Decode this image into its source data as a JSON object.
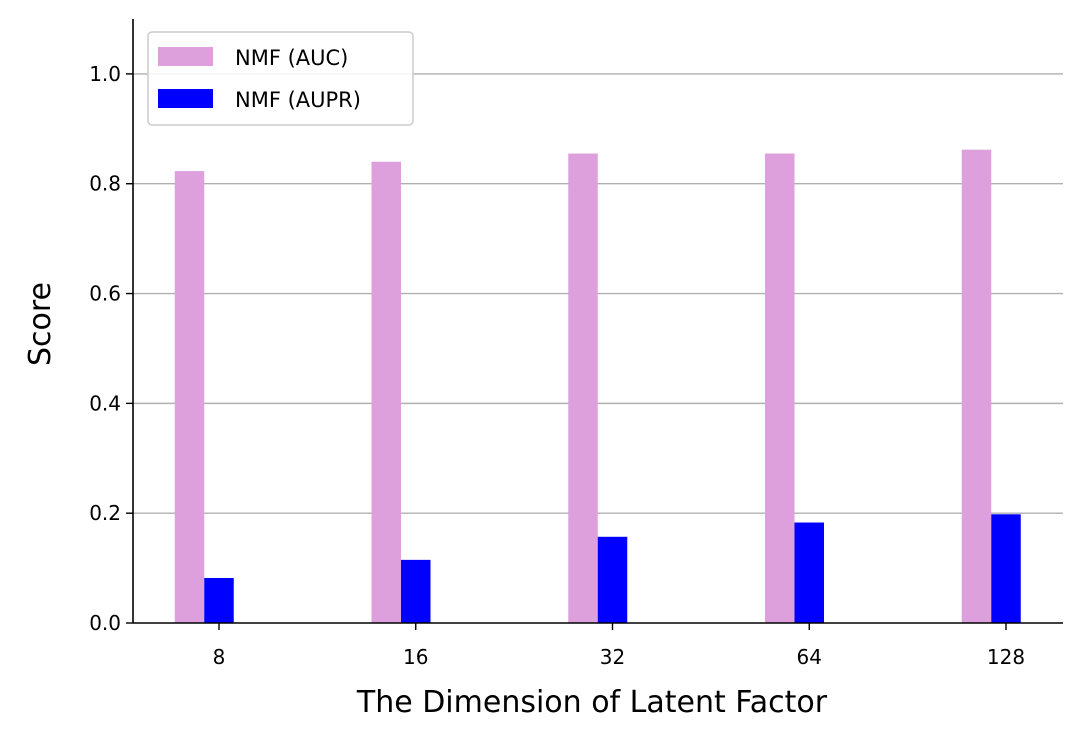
{
  "chart_data": {
    "type": "bar",
    "categories": [
      "8",
      "16",
      "32",
      "64",
      "128"
    ],
    "series": [
      {
        "name": "NMF (AUC)",
        "values": [
          0.823,
          0.84,
          0.855,
          0.855,
          0.862
        ],
        "color": "#DDA0DD"
      },
      {
        "name": "NMF (AUPR)",
        "values": [
          0.082,
          0.115,
          0.157,
          0.183,
          0.198
        ],
        "color": "#0000FF"
      }
    ],
    "xlabel": "The Dimension of Latent Factor",
    "ylabel": "Score",
    "ylim": [
      0,
      1.1
    ],
    "yticks": [
      0.0,
      0.2,
      0.4,
      0.6,
      0.8,
      1.0
    ],
    "ytick_labels": [
      "0.0",
      "0.2",
      "0.4",
      "0.6",
      "0.8",
      "1.0"
    ],
    "grid": "horizontal",
    "legend_position": "top-left"
  }
}
